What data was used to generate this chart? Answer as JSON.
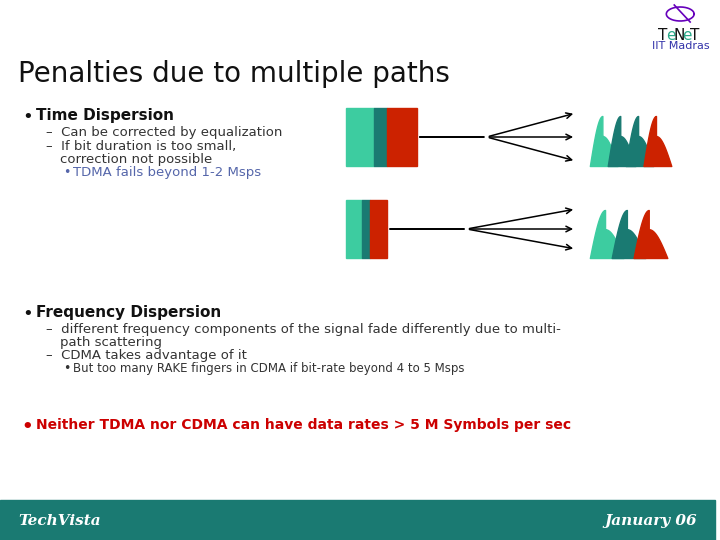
{
  "title": "Penalties due to multiple paths",
  "iit_madras_label": "IIT Madras",
  "bg_color": "#ffffff",
  "footer_color": "#1a7a72",
  "footer_left": "TechVista",
  "footer_right": "January 06",
  "bullet1_title": "Time Dispersion",
  "bullet1_sub1": "Can be corrected by equalization",
  "bullet1_sub2a": "If bit duration is too small,",
  "bullet1_sub2b": "correction not possible",
  "bullet1_sub3": "TDMA fails beyond 1-2 Msps",
  "bullet2_title": "Frequency Dispersion",
  "bullet2_sub1a": "different frequency components of the signal fade differently due to multi-",
  "bullet2_sub1b": "path scattering",
  "bullet2_sub2": "CDMA takes advantage of it",
  "bullet2_sub3": "But too many RAKE fingers in CDMA if bit-rate beyond 4 to 5 Msps",
  "bullet3": "Neither TDMA nor CDMA can have data rates > 5 M Symbols per sec",
  "teal_light": "#3dcca0",
  "teal_dark": "#1a7a72",
  "red_color": "#cc2200",
  "sub_color_blue": "#6666bb",
  "highlight_color": "#cc0000",
  "tenet_text_color": "#222222",
  "tenet_e_color": "#2aaa8a",
  "tenet_logo_purple": "#6600bb",
  "iit_madras_color": "#3333aa",
  "sub_text_color": "#333333",
  "bullet_sub_blue": "#5566aa"
}
